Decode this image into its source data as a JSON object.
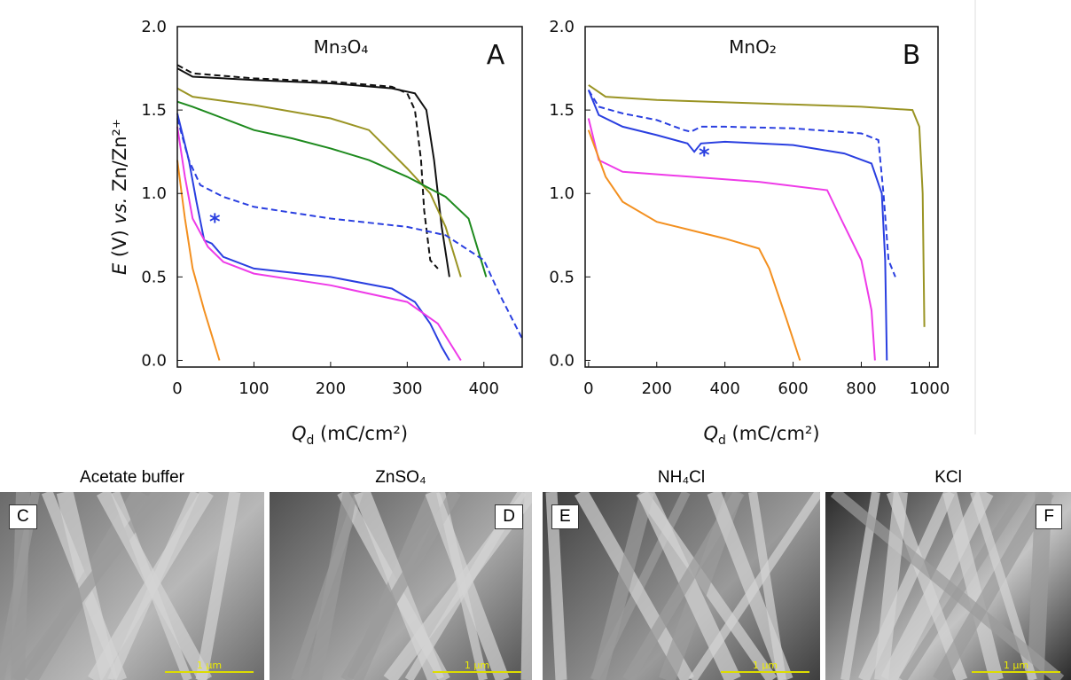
{
  "chart_data": [
    {
      "type": "line",
      "title": "Mn₃O₄",
      "panel": "A",
      "annotations": [
        "*"
      ],
      "xlabel": {
        "main": "Q",
        "sub": "d",
        "unit": " (mC/cm²)"
      },
      "ylabel": {
        "symbol": "E",
        "unit": " (V) ",
        "vs": "vs.",
        "ref": " Zn/Zn²⁺"
      },
      "xlim": [
        0,
        450
      ],
      "xticks": [
        0,
        100,
        200,
        300,
        400
      ],
      "ylim": [
        -0.04,
        2.0
      ],
      "yticks": [
        {
          "value": 0,
          "label": "0.0"
        },
        0.5,
        {
          "value": 1,
          "label": "1.0"
        },
        1.5,
        {
          "value": 2,
          "label": "2.0"
        }
      ],
      "series": [
        {
          "color": "#111111",
          "dash": "solid",
          "x": [
            0,
            20,
            100,
            200,
            280,
            310,
            325,
            335,
            345,
            355
          ],
          "values": [
            1.75,
            1.7,
            1.68,
            1.66,
            1.63,
            1.6,
            1.5,
            1.2,
            0.8,
            0.5
          ]
        },
        {
          "color": "#111111",
          "dash": "dashed",
          "x": [
            0,
            20,
            100,
            200,
            280,
            300,
            310,
            318,
            322,
            330,
            340
          ],
          "values": [
            1.77,
            1.72,
            1.69,
            1.67,
            1.64,
            1.6,
            1.5,
            1.2,
            0.9,
            0.6,
            0.55
          ]
        },
        {
          "color": "#9a9424",
          "dash": "solid",
          "x": [
            0,
            20,
            100,
            200,
            250,
            300,
            330,
            350,
            370
          ],
          "values": [
            1.63,
            1.58,
            1.53,
            1.45,
            1.38,
            1.15,
            1.0,
            0.8,
            0.5
          ]
        },
        {
          "color": "#1e8a1e",
          "dash": "solid",
          "x": [
            0,
            20,
            60,
            100,
            150,
            200,
            250,
            300,
            350,
            380,
            403
          ],
          "values": [
            1.55,
            1.52,
            1.45,
            1.38,
            1.33,
            1.27,
            1.2,
            1.1,
            0.98,
            0.85,
            0.5
          ]
        },
        {
          "color": "#2a3fe0",
          "dash": "dashed",
          "x": [
            0,
            15,
            30,
            60,
            100,
            200,
            300,
            350,
            400,
            420,
            450
          ],
          "values": [
            1.45,
            1.2,
            1.05,
            0.98,
            0.92,
            0.85,
            0.8,
            0.75,
            0.6,
            0.4,
            0.13
          ]
        },
        {
          "color": "#2a3fe0",
          "dash": "solid",
          "x": [
            0,
            15,
            25,
            35,
            45,
            60,
            100,
            200,
            280,
            310,
            330,
            345,
            355
          ],
          "values": [
            1.48,
            1.2,
            0.95,
            0.72,
            0.7,
            0.62,
            0.55,
            0.5,
            0.43,
            0.35,
            0.22,
            0.08,
            0.0
          ]
        },
        {
          "color": "#ee3be8",
          "dash": "solid",
          "x": [
            0,
            10,
            20,
            40,
            60,
            100,
            200,
            300,
            340,
            370
          ],
          "values": [
            1.4,
            1.1,
            0.85,
            0.68,
            0.59,
            0.52,
            0.45,
            0.35,
            0.22,
            0.0
          ]
        },
        {
          "color": "#f39020",
          "dash": "solid",
          "x": [
            0,
            10,
            20,
            35,
            45,
            55
          ],
          "values": [
            1.2,
            0.85,
            0.55,
            0.3,
            0.15,
            0.0
          ]
        }
      ]
    },
    {
      "type": "line",
      "title": "MnO₂",
      "panel": "B",
      "annotations": [
        "*"
      ],
      "xlabel": {
        "main": "Q",
        "sub": "d",
        "unit": " (mC/cm²)"
      },
      "xlim": [
        -10,
        1025
      ],
      "xticks": [
        0,
        200,
        400,
        600,
        800,
        1000
      ],
      "ylim": [
        -0.04,
        2.0
      ],
      "yticks": [
        {
          "value": 0,
          "label": "0.0"
        },
        0.5,
        {
          "value": 1,
          "label": "1.0"
        },
        1.5,
        {
          "value": 2,
          "label": "2.0"
        }
      ],
      "series": [
        {
          "color": "#9a9424",
          "dash": "solid",
          "x": [
            0,
            50,
            200,
            500,
            800,
            950,
            970,
            980,
            985
          ],
          "values": [
            1.65,
            1.58,
            1.56,
            1.54,
            1.52,
            1.5,
            1.4,
            1.0,
            0.2
          ]
        },
        {
          "color": "#2a3fe0",
          "dash": "dashed",
          "x": [
            0,
            30,
            100,
            200,
            280,
            300,
            330,
            400,
            600,
            800,
            850,
            865,
            880,
            900
          ],
          "values": [
            1.62,
            1.52,
            1.48,
            1.44,
            1.38,
            1.37,
            1.4,
            1.4,
            1.39,
            1.36,
            1.32,
            1.0,
            0.6,
            0.5
          ]
        },
        {
          "color": "#2a3fe0",
          "dash": "solid",
          "x": [
            0,
            30,
            100,
            200,
            290,
            310,
            330,
            400,
            600,
            750,
            830,
            860,
            870,
            875
          ],
          "values": [
            1.62,
            1.47,
            1.4,
            1.35,
            1.3,
            1.25,
            1.3,
            1.31,
            1.29,
            1.24,
            1.18,
            1.0,
            0.6,
            0.0
          ]
        },
        {
          "color": "#ee3be8",
          "dash": "solid",
          "x": [
            0,
            30,
            100,
            300,
            500,
            700,
            740,
            800,
            830,
            840
          ],
          "values": [
            1.45,
            1.2,
            1.13,
            1.1,
            1.07,
            1.02,
            0.85,
            0.6,
            0.3,
            0.0
          ]
        },
        {
          "color": "#f39020",
          "dash": "solid",
          "x": [
            0,
            50,
            100,
            200,
            300,
            400,
            500,
            530,
            580,
            620
          ],
          "values": [
            1.38,
            1.1,
            0.95,
            0.83,
            0.78,
            0.73,
            0.67,
            0.55,
            0.25,
            0.0
          ]
        }
      ]
    }
  ],
  "images": [
    {
      "title": "Acetate buffer",
      "label": "C",
      "scale": "1 µm"
    },
    {
      "title": "ZnSO₄",
      "label": "D",
      "scale": "1 µm"
    },
    {
      "title": "NH₄Cl",
      "label": "E",
      "scale": "1 µm"
    },
    {
      "title": "KCl",
      "label": "F",
      "scale": "1 µm"
    }
  ]
}
